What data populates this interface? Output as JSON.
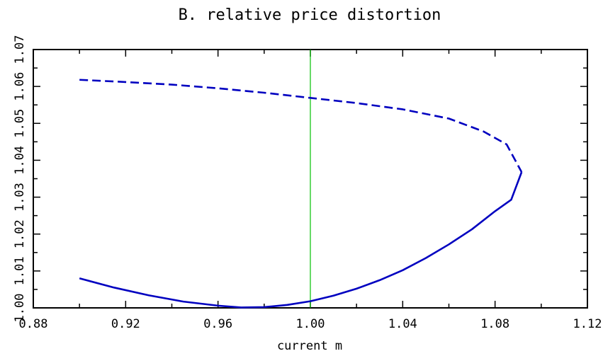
{
  "chart_data": {
    "type": "line",
    "title": "B. relative price distortion",
    "xlabel": "current m",
    "ylabel": "",
    "xlim": [
      0.88,
      1.12
    ],
    "ylim": [
      1.0,
      1.07
    ],
    "x_ticks": [
      "0.88",
      "0.92",
      "0.96",
      "1.00",
      "1.04",
      "1.08",
      "1.12"
    ],
    "y_ticks": [
      "1.00",
      "1.01",
      "1.02",
      "1.03",
      "1.04",
      "1.05",
      "1.06",
      "1.07"
    ],
    "grid": false,
    "reference_line": {
      "x": 1.0,
      "color": "#00c000"
    },
    "series": [
      {
        "style": "solid",
        "color": "#0000c0",
        "points": [
          [
            0.9,
            1.008
          ],
          [
            0.915,
            1.0055
          ],
          [
            0.93,
            1.0034
          ],
          [
            0.945,
            1.0017
          ],
          [
            0.96,
            1.0006
          ],
          [
            0.97,
            1.0001
          ],
          [
            0.98,
            1.0002
          ],
          [
            0.99,
            1.0008
          ],
          [
            1.0,
            1.0018
          ],
          [
            1.01,
            1.0033
          ],
          [
            1.02,
            1.0052
          ],
          [
            1.03,
            1.0075
          ],
          [
            1.04,
            1.0102
          ],
          [
            1.05,
            1.0135
          ],
          [
            1.06,
            1.0172
          ],
          [
            1.07,
            1.0213
          ],
          [
            1.08,
            1.0262
          ],
          [
            1.087,
            1.0293
          ],
          [
            1.0915,
            1.0368
          ]
        ]
      },
      {
        "style": "dashed",
        "color": "#0000c0",
        "points": [
          [
            0.9,
            1.0618
          ],
          [
            0.92,
            1.0612
          ],
          [
            0.94,
            1.0605
          ],
          [
            0.96,
            1.0595
          ],
          [
            0.98,
            1.0583
          ],
          [
            1.0,
            1.0569
          ],
          [
            1.02,
            1.0555
          ],
          [
            1.04,
            1.0538
          ],
          [
            1.06,
            1.0513
          ],
          [
            1.075,
            1.0478
          ],
          [
            1.085,
            1.0443
          ],
          [
            1.0915,
            1.0368
          ]
        ]
      }
    ]
  }
}
